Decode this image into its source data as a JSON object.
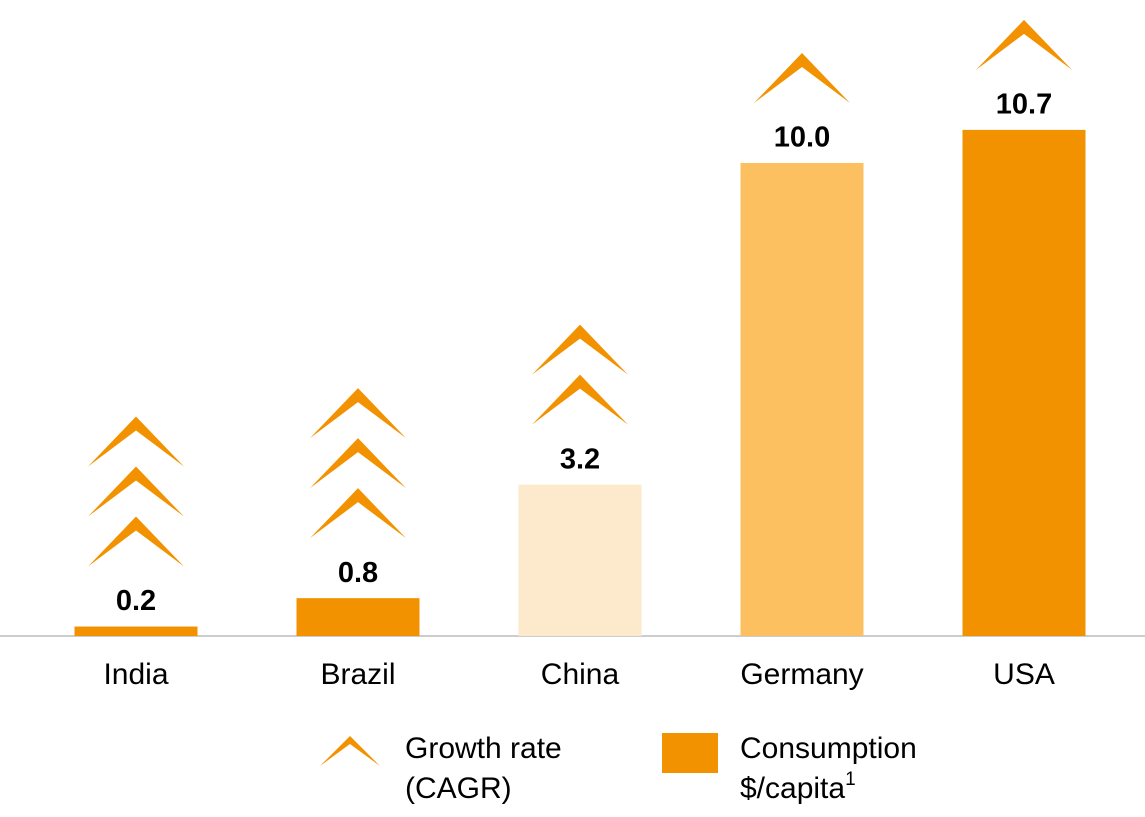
{
  "chart_data": {
    "type": "bar",
    "categories": [
      "India",
      "Brazil",
      "China",
      "Germany",
      "USA"
    ],
    "values": [
      0.2,
      0.8,
      3.2,
      10.0,
      10.7
    ],
    "value_labels": [
      "0.2",
      "0.8",
      "3.2",
      "10.0",
      "10.7"
    ],
    "colors": [
      "#f39200",
      "#f39200",
      "#fde9cc",
      "#fdc060",
      "#f39200"
    ],
    "chevrons": [
      3,
      3,
      2,
      1,
      1
    ],
    "chevron_color": "#f39200",
    "ylim": [
      0,
      12
    ],
    "legend": {
      "chevron_label": [
        "Growth rate",
        "(CAGR)"
      ],
      "bar_label": [
        "Consumption",
        "$/capita"
      ],
      "bar_label_footnote": "1",
      "bar_color": "#f39200"
    }
  }
}
